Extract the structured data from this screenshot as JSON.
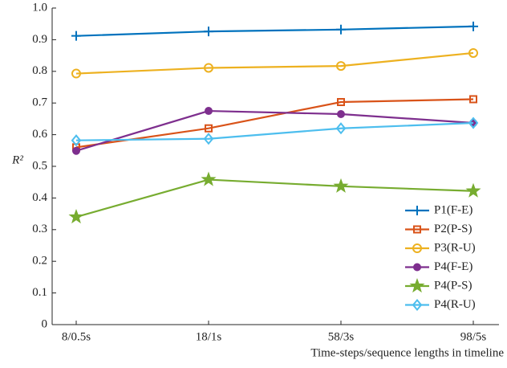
{
  "chart_data": {
    "type": "line",
    "categories": [
      "8/0.5s",
      "18/1s",
      "58/3s",
      "98/5s"
    ],
    "x_label": "Time-steps/sequence lengths in timeline",
    "y_label": "R²",
    "ylim": [
      0,
      1
    ],
    "yticks": [
      0,
      0.1,
      0.2,
      0.3,
      0.4,
      0.5,
      0.6,
      0.7,
      0.8,
      0.9,
      {
        "value": 1,
        "label": "1.0"
      }
    ],
    "legend": "lower right",
    "series": [
      {
        "name": "P1(F-E)",
        "color": "#0072BD",
        "marker": "plus",
        "values": [
          0.912,
          0.926,
          0.932,
          0.942
        ]
      },
      {
        "name": "P2(P-S)",
        "color": "#D95319",
        "marker": "square",
        "values": [
          0.56,
          0.62,
          0.703,
          0.712
        ]
      },
      {
        "name": "P3(R-U)",
        "color": "#EDB120",
        "marker": "circle",
        "values": [
          0.793,
          0.811,
          0.817,
          0.858
        ]
      },
      {
        "name": "P4(F-E)",
        "color": "#7E2F8E",
        "marker": "dot",
        "values": [
          0.549,
          0.675,
          0.665,
          0.637
        ]
      },
      {
        "name": "P4(P-S)",
        "color": "#77AC30",
        "marker": "star",
        "values": [
          0.34,
          0.458,
          0.437,
          0.422
        ]
      },
      {
        "name": "P4(R-U)",
        "color": "#4DBEEE",
        "marker": "diamond",
        "values": [
          0.582,
          0.587,
          0.62,
          0.637
        ]
      }
    ]
  }
}
